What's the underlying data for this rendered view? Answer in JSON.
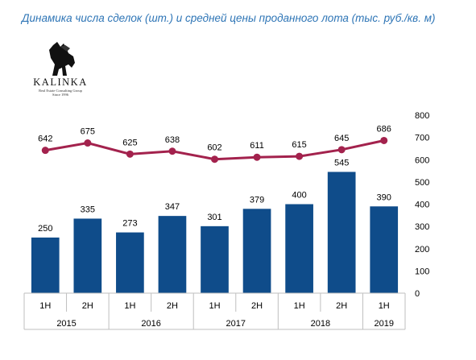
{
  "title": "Динамика числа сделок (шт.) и средней цены проданного лота (тыс. руб./кв. м)",
  "logo": {
    "word": "KALINKA",
    "sub1": "Real Estate Consulting Group",
    "sub2": "Since 1996"
  },
  "colors": {
    "bar": "#0f4c8a",
    "line": "#a3224d",
    "title": "#2e75b6"
  },
  "chart_data": {
    "type": "bar+line",
    "categories": [
      "1H",
      "2H",
      "1H",
      "2H",
      "1H",
      "2H",
      "1H",
      "2H",
      "1H"
    ],
    "years": [
      {
        "label": "2015",
        "span": 2
      },
      {
        "label": "2016",
        "span": 2
      },
      {
        "label": "2017",
        "span": 2
      },
      {
        "label": "2018",
        "span": 2
      },
      {
        "label": "2019",
        "span": 1
      }
    ],
    "series": [
      {
        "type": "bar",
        "values": [
          250,
          335,
          273,
          347,
          301,
          379,
          400,
          545,
          390
        ]
      },
      {
        "type": "line",
        "values": [
          642,
          675,
          625,
          638,
          602,
          611,
          615,
          645,
          686
        ]
      }
    ],
    "ylim": [
      0,
      800
    ],
    "yticks": [
      "0",
      "100",
      "200",
      "300",
      "400",
      "500",
      "600",
      "700",
      "800"
    ],
    "axis_position": "right",
    "grid": false,
    "legend": "none"
  }
}
